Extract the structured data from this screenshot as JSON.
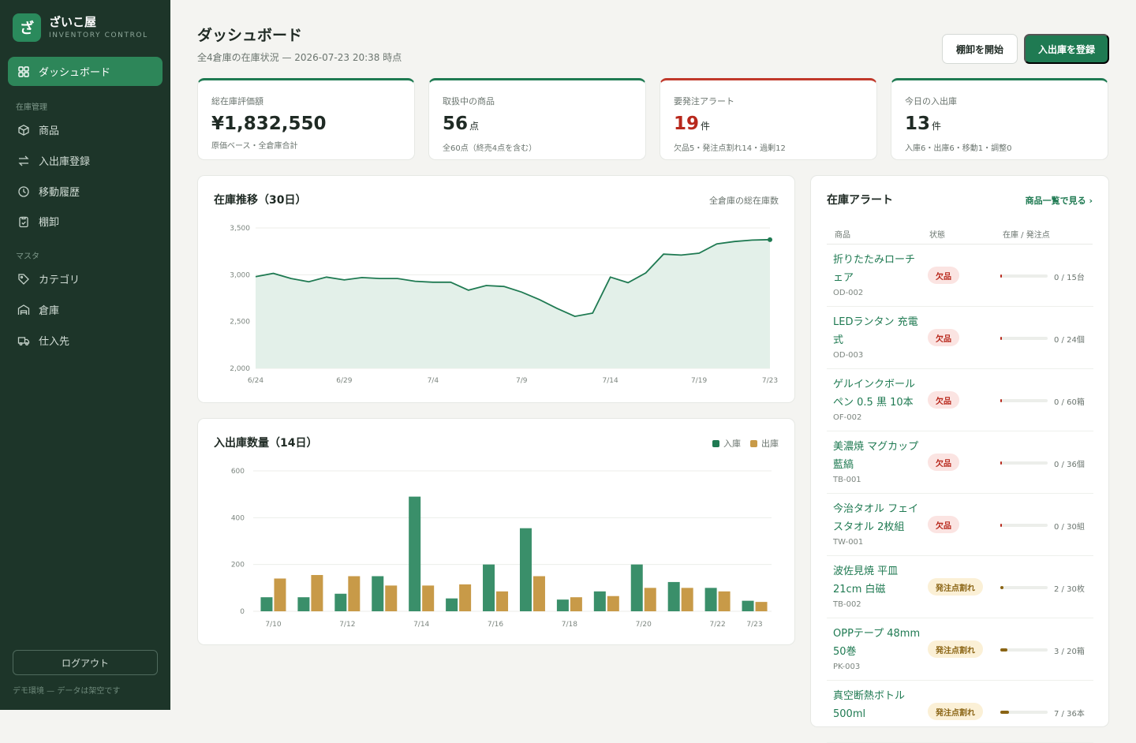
{
  "brand": {
    "logo_char": "ざ",
    "name": "ざいこ屋",
    "subtitle": "INVENTORY CONTROL"
  },
  "sidebar": {
    "items": [
      {
        "label": "ダッシュボード",
        "icon": "grid-icon",
        "active": true
      },
      {
        "label": "商品",
        "icon": "box-icon"
      },
      {
        "label": "入出庫登録",
        "icon": "swap-icon"
      },
      {
        "label": "移動履歴",
        "icon": "clock-icon"
      },
      {
        "label": "棚卸",
        "icon": "clipboard-icon"
      },
      {
        "label": "カテゴリ",
        "icon": "tag-icon"
      },
      {
        "label": "倉庫",
        "icon": "warehouse-icon"
      },
      {
        "label": "仕入先",
        "icon": "truck-icon"
      }
    ],
    "sections": [
      "在庫管理",
      "マスタ"
    ],
    "logout_label": "ログアウト",
    "demo_note": "デモ環境 — データは架空です"
  },
  "header": {
    "title": "ダッシュボード",
    "subtitle": "全4倉庫の在庫状況 — 2026-07-23 20:38 時点",
    "btn_stocktake": "棚卸を開始",
    "btn_register": "入出庫を登録"
  },
  "kpis": [
    {
      "label": "総在庫評価額",
      "value": "¥1,832,550",
      "unit": "",
      "note": "原価ベース・全倉庫合計"
    },
    {
      "label": "取扱中の商品",
      "value": "56",
      "unit": "点",
      "note": "全60点（終売4点を含む）"
    },
    {
      "label": "要発注アラート",
      "value": "19",
      "unit": "件",
      "note": "欠品5・発注点割れ14・過剰12"
    },
    {
      "label": "今日の入出庫",
      "value": "13",
      "unit": "件",
      "note": "入庫6・出庫6・移動1・調整0"
    }
  ],
  "colors": {
    "accent": "#1f7a52",
    "inbound": "#3a8f6a",
    "outbound": "#c89a48",
    "alert": "#b8281c"
  },
  "trend_panel": {
    "title": "在庫推移（30日）",
    "right_label": "全倉庫の総在庫数"
  },
  "flow_panel": {
    "title": "入出庫数量（14日）",
    "legend_in": "入庫",
    "legend_out": "出庫"
  },
  "chart_data": [
    {
      "type": "area",
      "title": "在庫推移（30日）",
      "y_ticks": [
        "2,000",
        "2,500",
        "3,000",
        "3,500"
      ],
      "ylim": [
        2000,
        3500
      ],
      "x_tick_labels": [
        "6/24",
        "6/29",
        "7/4",
        "7/9",
        "7/14",
        "7/19",
        "7/23"
      ],
      "x_tick_index": [
        0,
        5,
        10,
        15,
        20,
        25,
        29
      ],
      "values": [
        2980,
        3015,
        2960,
        2925,
        2975,
        2945,
        2970,
        2960,
        2960,
        2930,
        2920,
        2920,
        2835,
        2885,
        2875,
        2815,
        2735,
        2640,
        2555,
        2590,
        2975,
        2915,
        3020,
        3220,
        3210,
        3230,
        3330,
        3355,
        3370,
        3375
      ]
    },
    {
      "type": "bar",
      "title": "入出庫数量（14日）",
      "y_ticks": [
        "0",
        "200",
        "400",
        "600"
      ],
      "ylim": [
        0,
        600
      ],
      "x_tick_labels": [
        "7/10",
        "7/12",
        "7/14",
        "7/16",
        "7/18",
        "7/20",
        "7/22",
        "7/23"
      ],
      "x_tick_index": [
        0,
        2,
        4,
        6,
        8,
        10,
        12,
        13
      ],
      "series": [
        {
          "name": "入庫",
          "values": [
            60,
            60,
            75,
            150,
            490,
            55,
            200,
            355,
            50,
            85,
            200,
            125,
            100,
            45
          ]
        },
        {
          "name": "出庫",
          "values": [
            140,
            155,
            150,
            110,
            110,
            115,
            85,
            150,
            60,
            65,
            100,
            100,
            85,
            40
          ]
        }
      ]
    }
  ],
  "alerts": {
    "title": "在庫アラート",
    "link": "商品一覧で見る ›",
    "columns": [
      "商品",
      "状態",
      "在庫 / 発注点"
    ],
    "rows": [
      {
        "name": "折りたたみローチェア",
        "code": "OD-002",
        "status": "欠品",
        "kind": "out",
        "stock": "0 / 15台",
        "ratio": 0.02
      },
      {
        "name": "LEDランタン 充電式",
        "code": "OD-003",
        "status": "欠品",
        "kind": "out",
        "stock": "0 / 24個",
        "ratio": 0.02
      },
      {
        "name": "ゲルインクボールペン 0.5 黒 10本",
        "code": "OF-002",
        "status": "欠品",
        "kind": "out",
        "stock": "0 / 60箱",
        "ratio": 0.02
      },
      {
        "name": "美濃焼 マグカップ 藍縞",
        "code": "TB-001",
        "status": "欠品",
        "kind": "out",
        "stock": "0 / 36個",
        "ratio": 0.02
      },
      {
        "name": "今治タオル フェイスタオル 2枚組",
        "code": "TW-001",
        "status": "欠品",
        "kind": "out",
        "stock": "0 / 30組",
        "ratio": 0.02
      },
      {
        "name": "波佐見焼 平皿 21cm 白磁",
        "code": "TB-002",
        "status": "発注点割れ",
        "kind": "low",
        "stock": "2 / 30枚",
        "ratio": 0.07
      },
      {
        "name": "OPPテープ 48mm 50巻",
        "code": "PK-003",
        "status": "発注点割れ",
        "kind": "low",
        "stock": "3 / 20箱",
        "ratio": 0.15
      },
      {
        "name": "真空断熱ボトル 500ml",
        "code": "",
        "status": "発注点割れ",
        "kind": "low",
        "stock": "7 / 36本",
        "ratio": 0.19
      }
    ]
  }
}
